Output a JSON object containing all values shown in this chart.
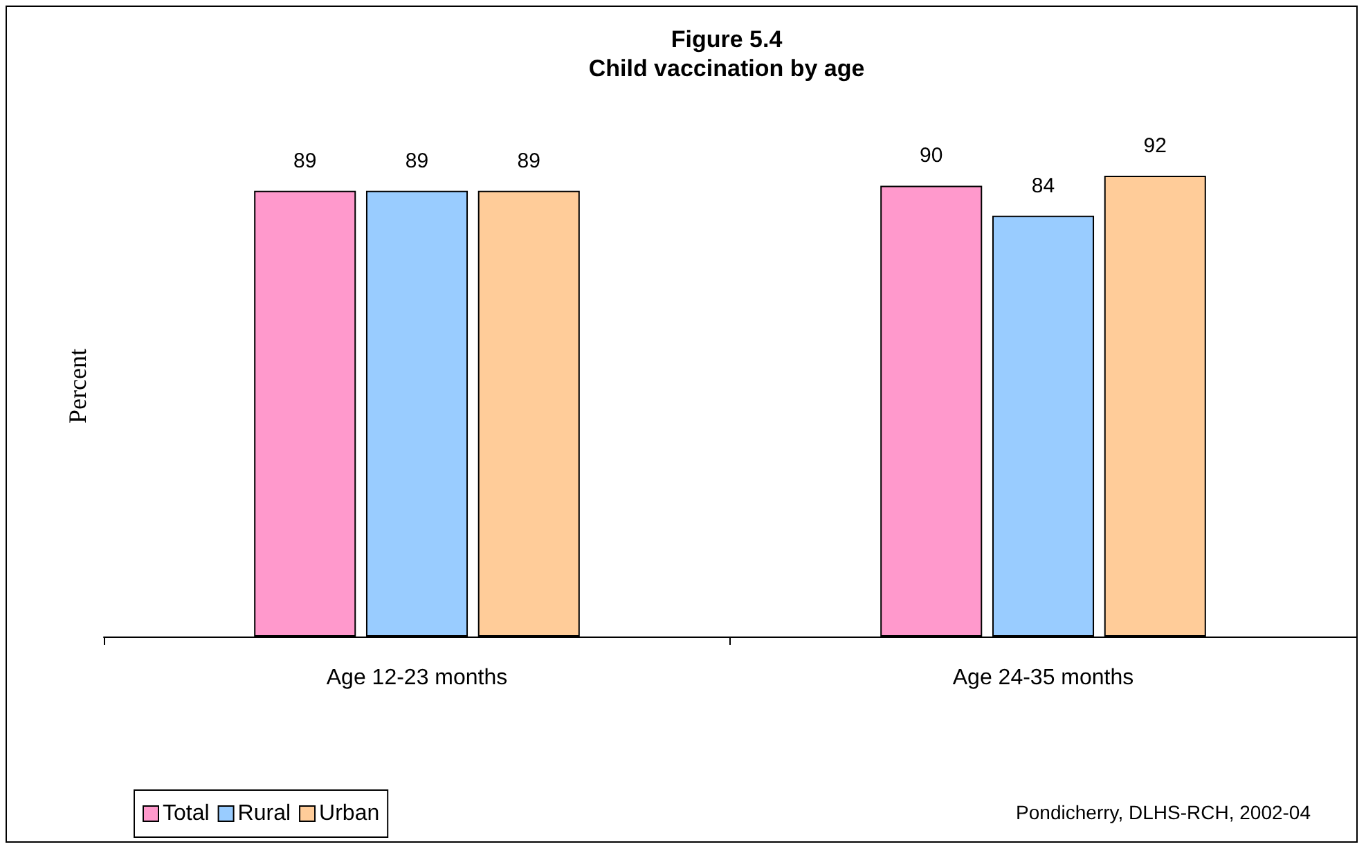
{
  "chart_data": {
    "type": "bar",
    "title": "Figure 5.4",
    "subtitle": "Child vaccination by age",
    "ylabel": "Percent",
    "categories": [
      "Age 12-23 months",
      "Age 24-35 months"
    ],
    "series": [
      {
        "name": "Total",
        "color": "#ff99cc",
        "values": [
          89,
          90
        ]
      },
      {
        "name": "Rural",
        "color": "#99ccff",
        "values": [
          89,
          84
        ]
      },
      {
        "name": "Urban",
        "color": "#ffcc99",
        "values": [
          89,
          92
        ]
      }
    ],
    "tick_labels": "x",
    "data_labels": true,
    "grid": false,
    "legend": "bottom left",
    "annotations": [
      "Pondicherry, DLHS-RCH, 2002-04"
    ]
  }
}
